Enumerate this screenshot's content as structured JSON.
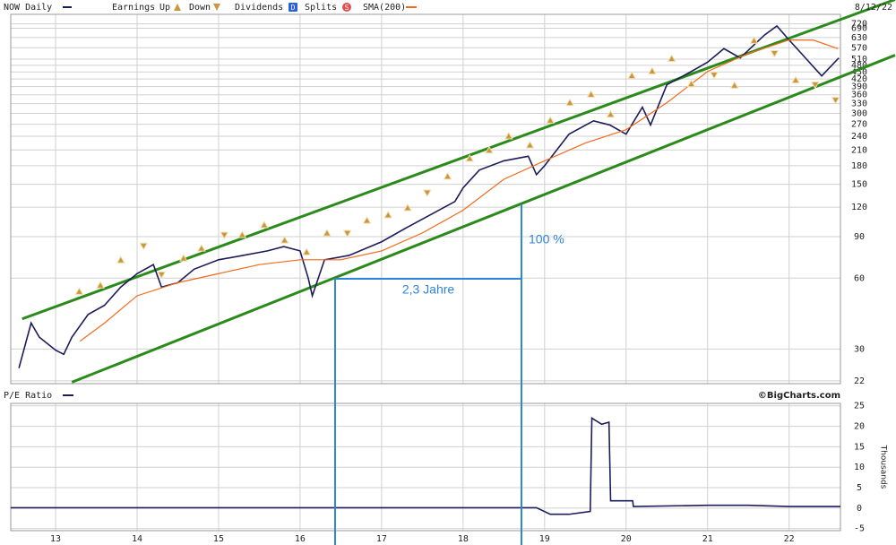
{
  "chart_data": [
    {
      "type": "line",
      "log_y": true,
      "grid": true,
      "x_tick_labels": false,
      "date_label": "8/12/22",
      "xlim": [
        12.45,
        22.63
      ],
      "ylim": [
        21.4,
        790
      ],
      "xticks": [
        13,
        14,
        15,
        16,
        17,
        18,
        19,
        20,
        21,
        22
      ],
      "yticks": [
        22,
        30,
        60,
        90,
        120,
        150,
        180,
        210,
        240,
        270,
        300,
        330,
        360,
        390,
        420,
        450,
        480,
        510,
        570,
        630,
        690,
        720
      ],
      "series": [
        {
          "name": "NOW Daily",
          "color": "#1c1c5c",
          "x": [
            12.55,
            12.7,
            12.8,
            13.0,
            13.1,
            13.2,
            13.4,
            13.6,
            13.8,
            14.0,
            14.2,
            14.3,
            14.5,
            14.7,
            15.0,
            15.3,
            15.6,
            15.8,
            16.0,
            16.1,
            16.15,
            16.3,
            16.6,
            17.0,
            17.3,
            17.6,
            17.9,
            18.0,
            18.2,
            18.5,
            18.8,
            18.9,
            19.0,
            19.3,
            19.6,
            19.8,
            20.0,
            20.2,
            20.3,
            20.5,
            20.8,
            21.0,
            21.2,
            21.4,
            21.7,
            21.85,
            22.0,
            22.2,
            22.4,
            22.61
          ],
          "values": [
            24.9,
            38.7,
            33.7,
            29.7,
            28.5,
            33.7,
            42.1,
            46,
            55,
            62.7,
            68.5,
            55,
            57.4,
            65.5,
            71.8,
            74.9,
            78.3,
            81.7,
            78.3,
            60,
            50.5,
            71.8,
            74.9,
            85.6,
            98,
            111.5,
            126.9,
            144.9,
            172.6,
            188.8,
            197.4,
            165,
            180,
            245,
            279,
            268,
            245,
            319,
            268,
            397,
            452,
            495,
            565,
            516,
            646,
            705,
            615,
            516,
            433,
            516
          ]
        },
        {
          "name": "SMA(200)",
          "color": "#f26a1b",
          "x": [
            13.3,
            13.6,
            14.0,
            14.5,
            15.0,
            15.5,
            16.0,
            16.5,
            17.0,
            17.5,
            18.0,
            18.5,
            19.0,
            19.5,
            20.0,
            20.5,
            21.0,
            21.5,
            22.0,
            22.3,
            22.6
          ],
          "values": [
            32.4,
            38.7,
            50.5,
            57.4,
            62.7,
            68.5,
            71.8,
            71.8,
            78.3,
            93.3,
            116.5,
            157.7,
            188.8,
            224.6,
            256,
            333,
            452,
            539,
            615,
            614,
            565
          ]
        }
      ],
      "earnings_label": "Earnings",
      "markers": [
        {
          "name": "Up",
          "shape": "triangle-up",
          "color": "#c9963e",
          "x": [
            13.29,
            13.55,
            13.8,
            14.57,
            14.79,
            15.29,
            15.56,
            15.81,
            16.08,
            16.33,
            16.82,
            17.08,
            17.32,
            17.81,
            18.08,
            18.32,
            18.56,
            18.82,
            19.07,
            19.31,
            19.57,
            19.81,
            20.07,
            20.32,
            20.56,
            20.8,
            21.33,
            21.57,
            22.08
          ],
          "values": [
            52.6,
            55.9,
            71.5,
            72.8,
            80.2,
            91.5,
            100.8,
            86.8,
            77.4,
            93.1,
            105.3,
            111,
            119.1,
            162,
            193,
            209,
            240,
            220,
            280,
            333,
            361,
            297,
            433,
            453,
            512,
            400,
            394,
            611,
            415
          ]
        },
        {
          "name": "Down",
          "shape": "triangle-down",
          "color": "#c9963e",
          "x": [
            14.08,
            14.3,
            15.07,
            16.58,
            17.56,
            21.08,
            21.82,
            22.32,
            22.57
          ],
          "values": [
            82.3,
            62.1,
            91.5,
            93.1,
            138.3,
            437,
            540,
            397,
            342
          ]
        }
      ],
      "legend_extra": [
        {
          "label": "Dividends",
          "icon": "D",
          "color": "#2f5fd8"
        },
        {
          "label": "Splits",
          "icon": "S",
          "color": "#e05050"
        }
      ],
      "trendlines": [
        {
          "color": "#2a8a1a",
          "x": [
            12.59,
            23.3
          ],
          "values": [
            40.3,
            913
          ]
        },
        {
          "color": "#2a8a1a",
          "x": [
            13.2,
            23.3
          ],
          "values": [
            21.7,
            530
          ]
        }
      ],
      "annotations": [
        "100 %",
        "2,3 Jahre"
      ]
    },
    {
      "type": "line",
      "log_y": false,
      "grid": true,
      "x_tick_labels": true,
      "source": "©BigCharts.com",
      "y_label": "Thousands",
      "xlim": [
        12.45,
        22.63
      ],
      "ylim": [
        -5.5,
        25.6
      ],
      "xticks": [
        13,
        14,
        15,
        16,
        17,
        18,
        19,
        20,
        21,
        22
      ],
      "yticks": [
        -5,
        0,
        5,
        10,
        15,
        20,
        25
      ],
      "series": [
        {
          "name": "P/E Ratio",
          "color": "#1c1c5c",
          "x": [
            12.45,
            18.9,
            19.07,
            19.3,
            19.56,
            19.58,
            19.7,
            19.79,
            19.81,
            20.08,
            20.09,
            21.0,
            21.5,
            22.0,
            22.63
          ],
          "values": [
            0.1,
            0.1,
            -1.5,
            -1.5,
            -0.8,
            22,
            20.5,
            21,
            1.8,
            1.8,
            0.4,
            0.7,
            0.7,
            0.4,
            0.4
          ]
        }
      ]
    }
  ]
}
